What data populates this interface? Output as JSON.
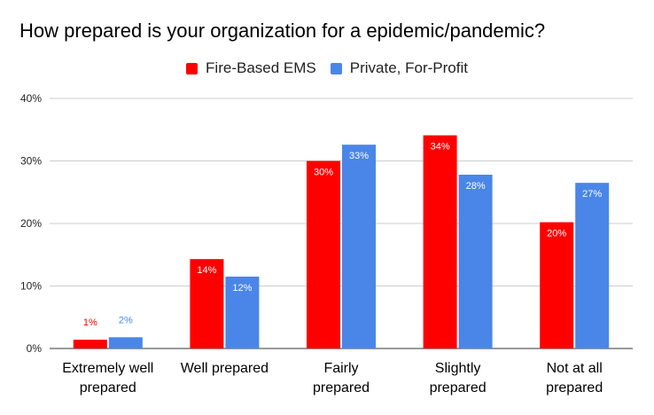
{
  "chart_data": {
    "type": "bar",
    "title": "How prepared is your organization for a epidemic/pandemic?",
    "categories": [
      [
        "Extremely well",
        "prepared"
      ],
      [
        "Well prepared"
      ],
      [
        "Fairly",
        "prepared"
      ],
      [
        "Slightly",
        "prepared"
      ],
      [
        "Not at all",
        "prepared"
      ]
    ],
    "series": [
      {
        "name": "Fire-Based EMS",
        "color": "#ff0000",
        "values": [
          1.4,
          14.3,
          30.0,
          34.1,
          20.2
        ],
        "labels": [
          "1%",
          "14%",
          "30%",
          "34%",
          "20%"
        ],
        "label_position": [
          "outside",
          "inside",
          "inside",
          "inside",
          "inside"
        ]
      },
      {
        "name": "Private, For-Profit",
        "color": "#4a86e8",
        "values": [
          1.8,
          11.5,
          32.6,
          27.8,
          26.5
        ],
        "labels": [
          "2%",
          "12%",
          "33%",
          "28%",
          "27%"
        ],
        "label_position": [
          "outside",
          "inside",
          "inside",
          "inside",
          "inside"
        ]
      }
    ],
    "ylim": [
      0,
      40
    ],
    "yticks": [
      0,
      10,
      20,
      30,
      40
    ],
    "ytick_labels": [
      "0%",
      "10%",
      "20%",
      "30%",
      "40%"
    ],
    "grid": true,
    "legend_position": "top-center",
    "xlabel": "",
    "ylabel": ""
  }
}
